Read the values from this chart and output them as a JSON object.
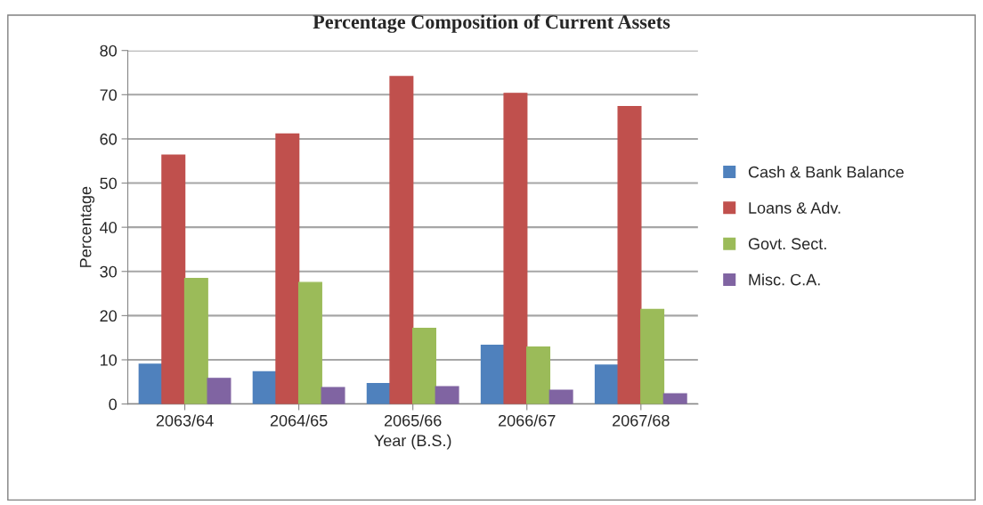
{
  "chart_data": {
    "type": "bar",
    "title": "Percentage Composition of Current Assets",
    "xlabel": "Year (B.S.)",
    "ylabel": "Percentage",
    "categories": [
      "2063/64",
      "2064/65",
      "2065/66",
      "2066/67",
      "2067/68"
    ],
    "series": [
      {
        "name": "Cash & Bank Balance",
        "color": "#4f81bd",
        "values": [
          9.0,
          7.3,
          4.6,
          13.3,
          8.8
        ]
      },
      {
        "name": "Loans & Adv.",
        "color": "#c0504d",
        "values": [
          56.3,
          61.1,
          74.1,
          70.3,
          67.3
        ]
      },
      {
        "name": "Govt. Sect.",
        "color": "#9bbb59",
        "values": [
          28.4,
          27.5,
          17.1,
          12.9,
          21.4
        ]
      },
      {
        "name": "Misc. C.A.",
        "color": "#8064a2",
        "values": [
          5.8,
          3.7,
          3.9,
          3.1,
          2.3
        ]
      }
    ],
    "ylim": [
      0,
      80
    ],
    "yticks": [
      0,
      10,
      20,
      30,
      40,
      50,
      60,
      70,
      80
    ],
    "grid": "y",
    "legend": "right"
  }
}
